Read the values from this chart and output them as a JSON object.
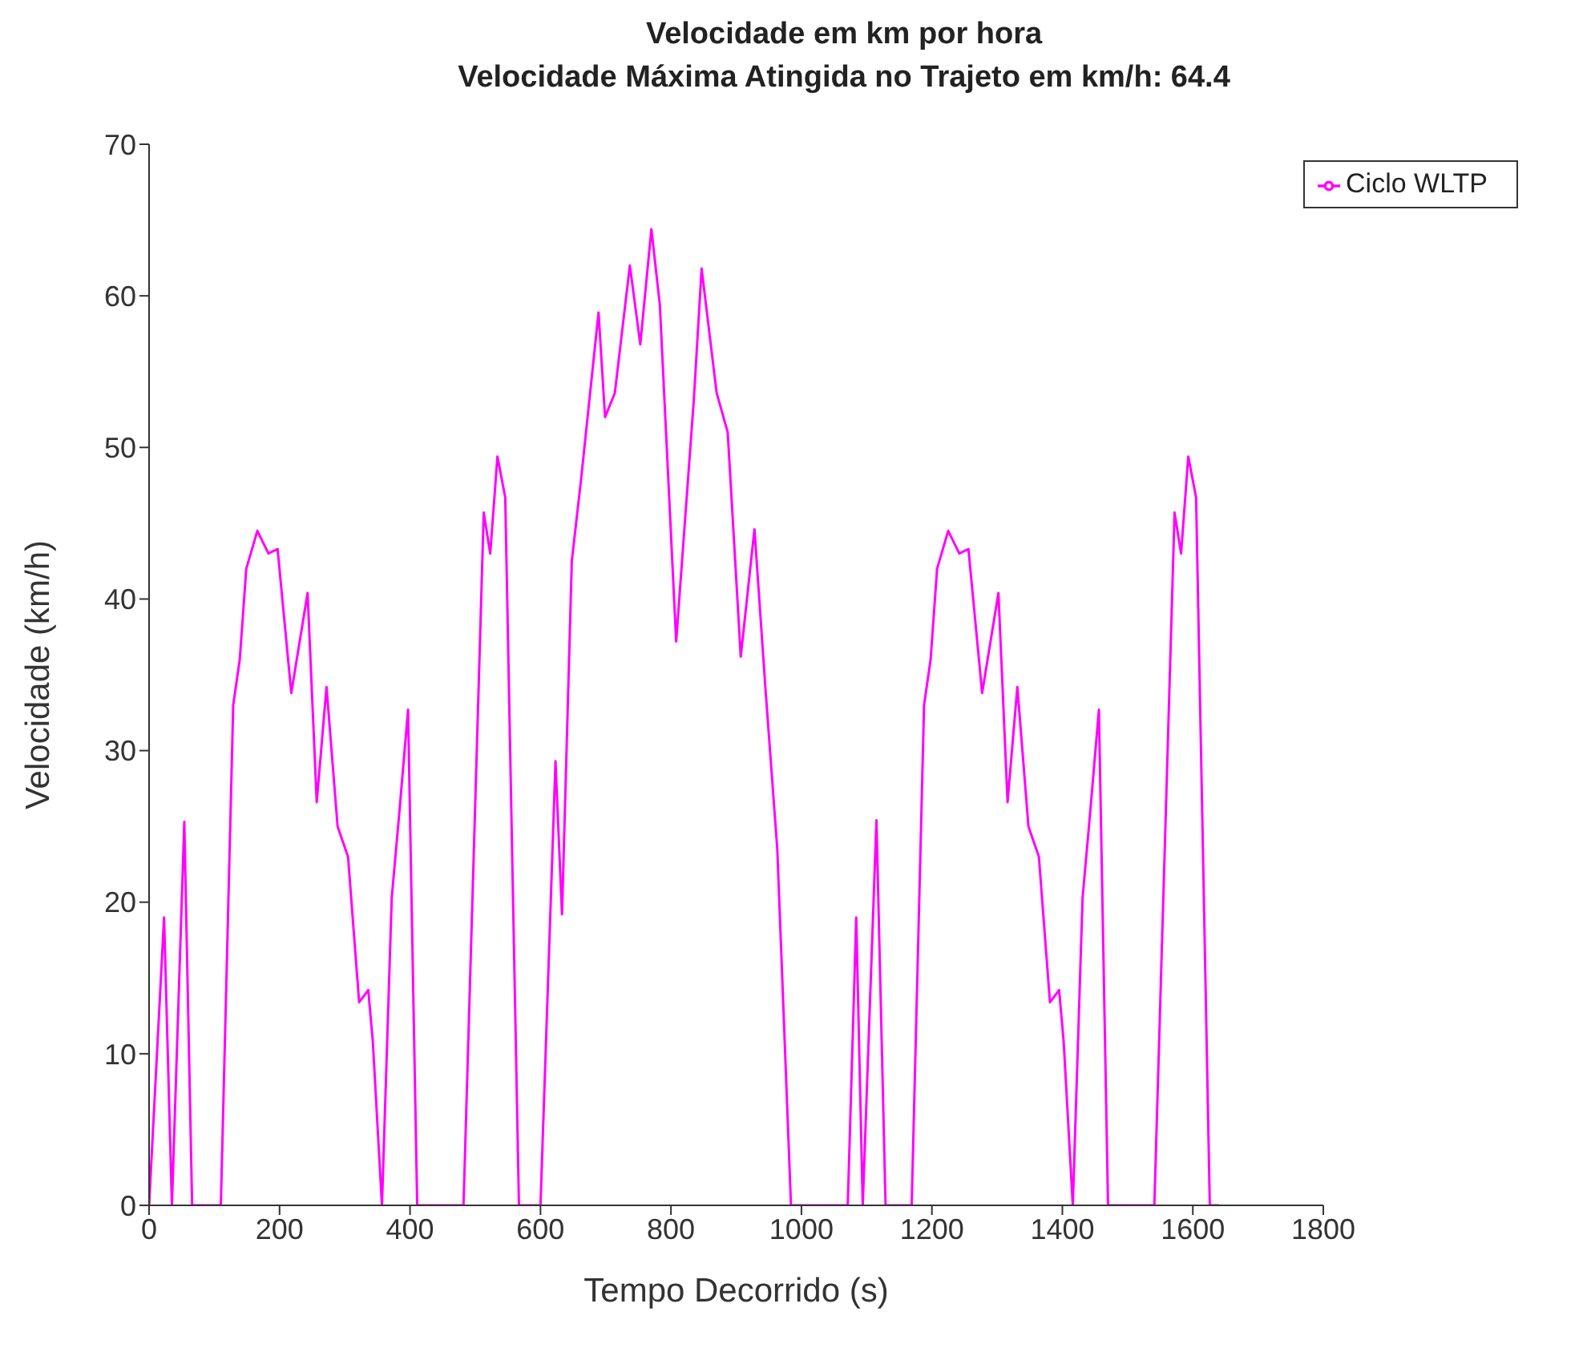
{
  "chart_data": {
    "type": "line",
    "title": "Velocidade em km por hora",
    "subtitle": "Velocidade Máxima Atingida no Trajeto em km/h: 64.4",
    "xlabel": "Tempo Decorrido (s)",
    "ylabel": "Velocidade (km/h)",
    "xlim": [
      0,
      1800
    ],
    "xticks": [
      0,
      200,
      400,
      600,
      800,
      1000,
      1200,
      1400,
      1600,
      1800
    ],
    "ylim": [
      0,
      70
    ],
    "yticks": [
      0,
      10,
      20,
      30,
      40,
      50,
      60,
      70
    ],
    "grid": false,
    "legend": "top right",
    "series": [
      {
        "name": "Ciclo WLTP",
        "color": "#ff00ff",
        "x": [
          0,
          23,
          35,
          54,
          66,
          110,
          129,
          139,
          149,
          166,
          183,
          197,
          218,
          243,
          257,
          272,
          289,
          305,
          322,
          336,
          343,
          357,
          372,
          384,
          397,
          411,
          482,
          513,
          523,
          534,
          546,
          567,
          600,
          623,
          633,
          648,
          662,
          689,
          699,
          714,
          737,
          753,
          770,
          783,
          808,
          835,
          847,
          870,
          887,
          907,
          928,
          945,
          963,
          984,
          1071,
          1084,
          1094,
          1115,
          1129,
          1169,
          1188,
          1198,
          1208,
          1225,
          1242,
          1256,
          1277,
          1302,
          1316,
          1331,
          1348,
          1364,
          1381,
          1395,
          1402,
          1416,
          1431,
          1443,
          1456,
          1470,
          1541,
          1572,
          1582,
          1593,
          1605,
          1626,
          1640
        ],
        "values": [
          0,
          19,
          0,
          25.3,
          0,
          0,
          33,
          36,
          42,
          44.5,
          43,
          43.3,
          33.8,
          40.4,
          26.6,
          34.2,
          25,
          23,
          13.4,
          14.2,
          10.8,
          0,
          20.3,
          26.1,
          32.7,
          0,
          0,
          45.7,
          43,
          49.4,
          46.7,
          0,
          0,
          29.3,
          19.2,
          42.5,
          47.8,
          58.9,
          52,
          53.6,
          62,
          56.8,
          64.4,
          59.4,
          37.2,
          53.1,
          61.8,
          53.6,
          51,
          36.2,
          44.6,
          34,
          23.5,
          0,
          0,
          19,
          0,
          25.4,
          0,
          0,
          33,
          36,
          42,
          44.5,
          43,
          43.3,
          33.8,
          40.4,
          26.6,
          34.2,
          25,
          23,
          13.4,
          14.2,
          10.8,
          0,
          20.3,
          26.1,
          32.7,
          0,
          0,
          45.7,
          43,
          49.4,
          46.7,
          0,
          0
        ]
      }
    ]
  }
}
